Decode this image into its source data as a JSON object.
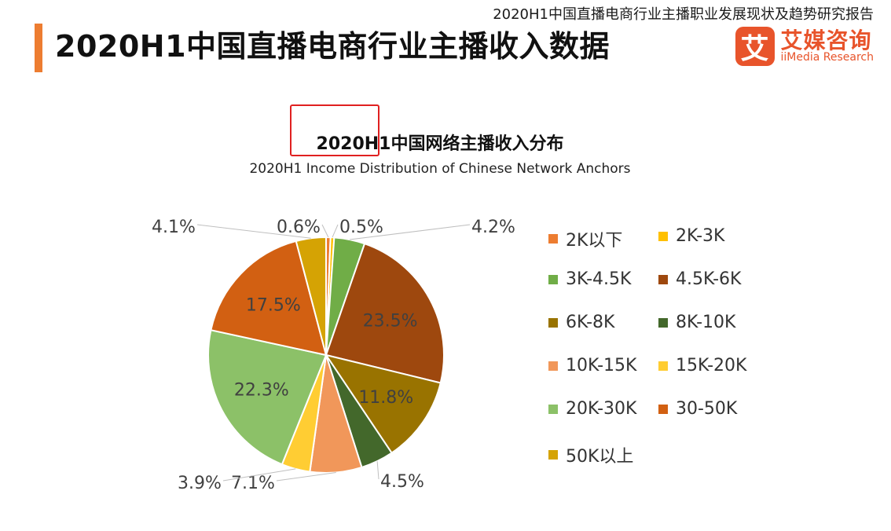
{
  "header": {
    "report_title": "2020H1中国直播电商行业主播职业发展现状及趋势研究报告",
    "page_title": "2020H1中国直播电商行业主播收入数据"
  },
  "logo": {
    "mark": "艾",
    "name_cn": "艾媒咨询",
    "name_en": "iiMedia Research"
  },
  "chart_data": {
    "type": "pie",
    "title": "2020H1中国网络主播收入分布",
    "subtitle": "2020H1 Income Distribution of Chinese Network Anchors",
    "start_angle_deg": 0,
    "direction": "clockwise",
    "slices": [
      {
        "label": "2K以下",
        "value": 0.6,
        "display": "0.6%",
        "color": "#ED7D31"
      },
      {
        "label": "2K-3K",
        "value": 0.5,
        "display": "0.5%",
        "color": "#FFC000"
      },
      {
        "label": "3K-4.5K",
        "value": 4.2,
        "display": "4.2%",
        "color": "#70AD47"
      },
      {
        "label": "4.5K-6K",
        "value": 23.5,
        "display": "23.5%",
        "color": "#9E480E"
      },
      {
        "label": "6K-8K",
        "value": 11.8,
        "display": "11.8%",
        "color": "#997300"
      },
      {
        "label": "8K-10K",
        "value": 4.5,
        "display": "4.5%",
        "color": "#43682B"
      },
      {
        "label": "10K-15K",
        "value": 7.1,
        "display": "7.1%",
        "color": "#F1975A"
      },
      {
        "label": "15K-20K",
        "value": 3.9,
        "display": "3.9%",
        "color": "#FFCD33"
      },
      {
        "label": "20K-30K",
        "value": 22.3,
        "display": "22.3%",
        "color": "#8CC168"
      },
      {
        "label": "30-50K",
        "value": 17.5,
        "display": "17.5%",
        "color": "#D26012"
      },
      {
        "label": "50K以上",
        "value": 4.1,
        "display": "4.1%",
        "color": "#D5A304"
      }
    ],
    "legend_position": "right"
  }
}
